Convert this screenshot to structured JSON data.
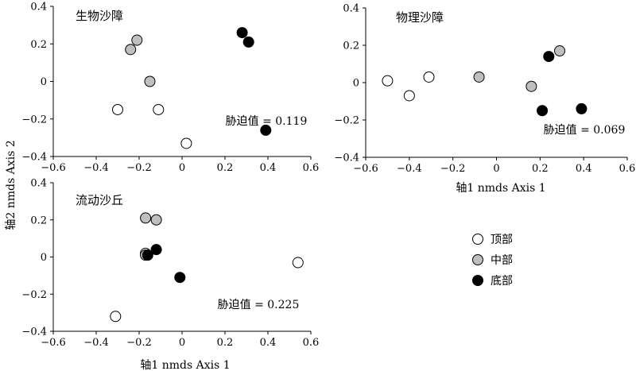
{
  "axis_labels": {
    "y": "轴2 nmds Axis 2",
    "x": "轴1 nmds Axis 1"
  },
  "legend": [
    {
      "label": "顶部",
      "color": "#ffffff"
    },
    {
      "label": "中部",
      "color": "#bfbfbf"
    },
    {
      "label": "底部",
      "color": "#000000"
    }
  ],
  "chart_data": [
    {
      "type": "scatter",
      "title": "生物沙障",
      "annotation": "胁迫值 = 0.119",
      "xlim": [
        -0.6,
        0.6
      ],
      "ylim": [
        -0.4,
        0.4
      ],
      "xticks": [
        "−0.6",
        "−0.4",
        "−0.2",
        "0",
        "0.2",
        "0.4",
        "0.6"
      ],
      "yticks": [
        "0.4",
        "0.2",
        "0",
        "−0.2",
        "−0.4"
      ],
      "series": [
        {
          "name": "顶部",
          "color": "#ffffff",
          "points": [
            [
              -0.3,
              -0.15
            ],
            [
              -0.11,
              -0.15
            ],
            [
              0.02,
              -0.33
            ]
          ]
        },
        {
          "name": "中部",
          "color": "#bfbfbf",
          "points": [
            [
              -0.24,
              0.17
            ],
            [
              -0.21,
              0.22
            ],
            [
              -0.15,
              0.0
            ]
          ]
        },
        {
          "name": "底部",
          "color": "#000000",
          "points": [
            [
              0.28,
              0.26
            ],
            [
              0.31,
              0.21
            ],
            [
              0.39,
              -0.26
            ]
          ]
        }
      ]
    },
    {
      "type": "scatter",
      "title": "物理沙障",
      "annotation": "胁迫值 = 0.069",
      "xlim": [
        -0.6,
        0.6
      ],
      "ylim": [
        -0.4,
        0.4
      ],
      "xticks": [
        "−0.6",
        "−0.4",
        "−0.2",
        "0",
        "0.2",
        "0.4",
        "0.6"
      ],
      "yticks": [
        "0.4",
        "0.2",
        "0",
        "−0.2",
        "−0.4"
      ],
      "series": [
        {
          "name": "顶部",
          "color": "#ffffff",
          "points": [
            [
              -0.5,
              0.01
            ],
            [
              -0.4,
              -0.07
            ],
            [
              -0.31,
              0.03
            ]
          ]
        },
        {
          "name": "中部",
          "color": "#bfbfbf",
          "points": [
            [
              -0.08,
              0.03
            ],
            [
              0.16,
              -0.02
            ],
            [
              0.29,
              0.17
            ]
          ]
        },
        {
          "name": "底部",
          "color": "#000000",
          "points": [
            [
              0.24,
              0.14
            ],
            [
              0.21,
              -0.15
            ],
            [
              0.39,
              -0.14
            ]
          ]
        }
      ]
    },
    {
      "type": "scatter",
      "title": "流动沙丘",
      "annotation": "胁迫值 = 0.225",
      "xlim": [
        -0.6,
        0.6
      ],
      "ylim": [
        -0.4,
        0.4
      ],
      "xticks": [
        "−0.6",
        "−0.4",
        "−0.2",
        "0",
        "0.2",
        "0.4",
        "0.6"
      ],
      "yticks": [
        "0.4",
        "0.2",
        "0",
        "−0.2",
        "−0.4"
      ],
      "series": [
        {
          "name": "顶部",
          "color": "#ffffff",
          "points": [
            [
              -0.31,
              -0.32
            ],
            [
              0.54,
              -0.03
            ],
            [
              -0.17,
              0.02
            ]
          ]
        },
        {
          "name": "中部",
          "color": "#bfbfbf",
          "points": [
            [
              -0.17,
              0.21
            ],
            [
              -0.12,
              0.2
            ],
            [
              -0.17,
              0.01
            ]
          ]
        },
        {
          "name": "底部",
          "color": "#000000",
          "points": [
            [
              -0.16,
              0.01
            ],
            [
              -0.12,
              0.04
            ],
            [
              -0.01,
              -0.11
            ]
          ]
        }
      ]
    }
  ]
}
